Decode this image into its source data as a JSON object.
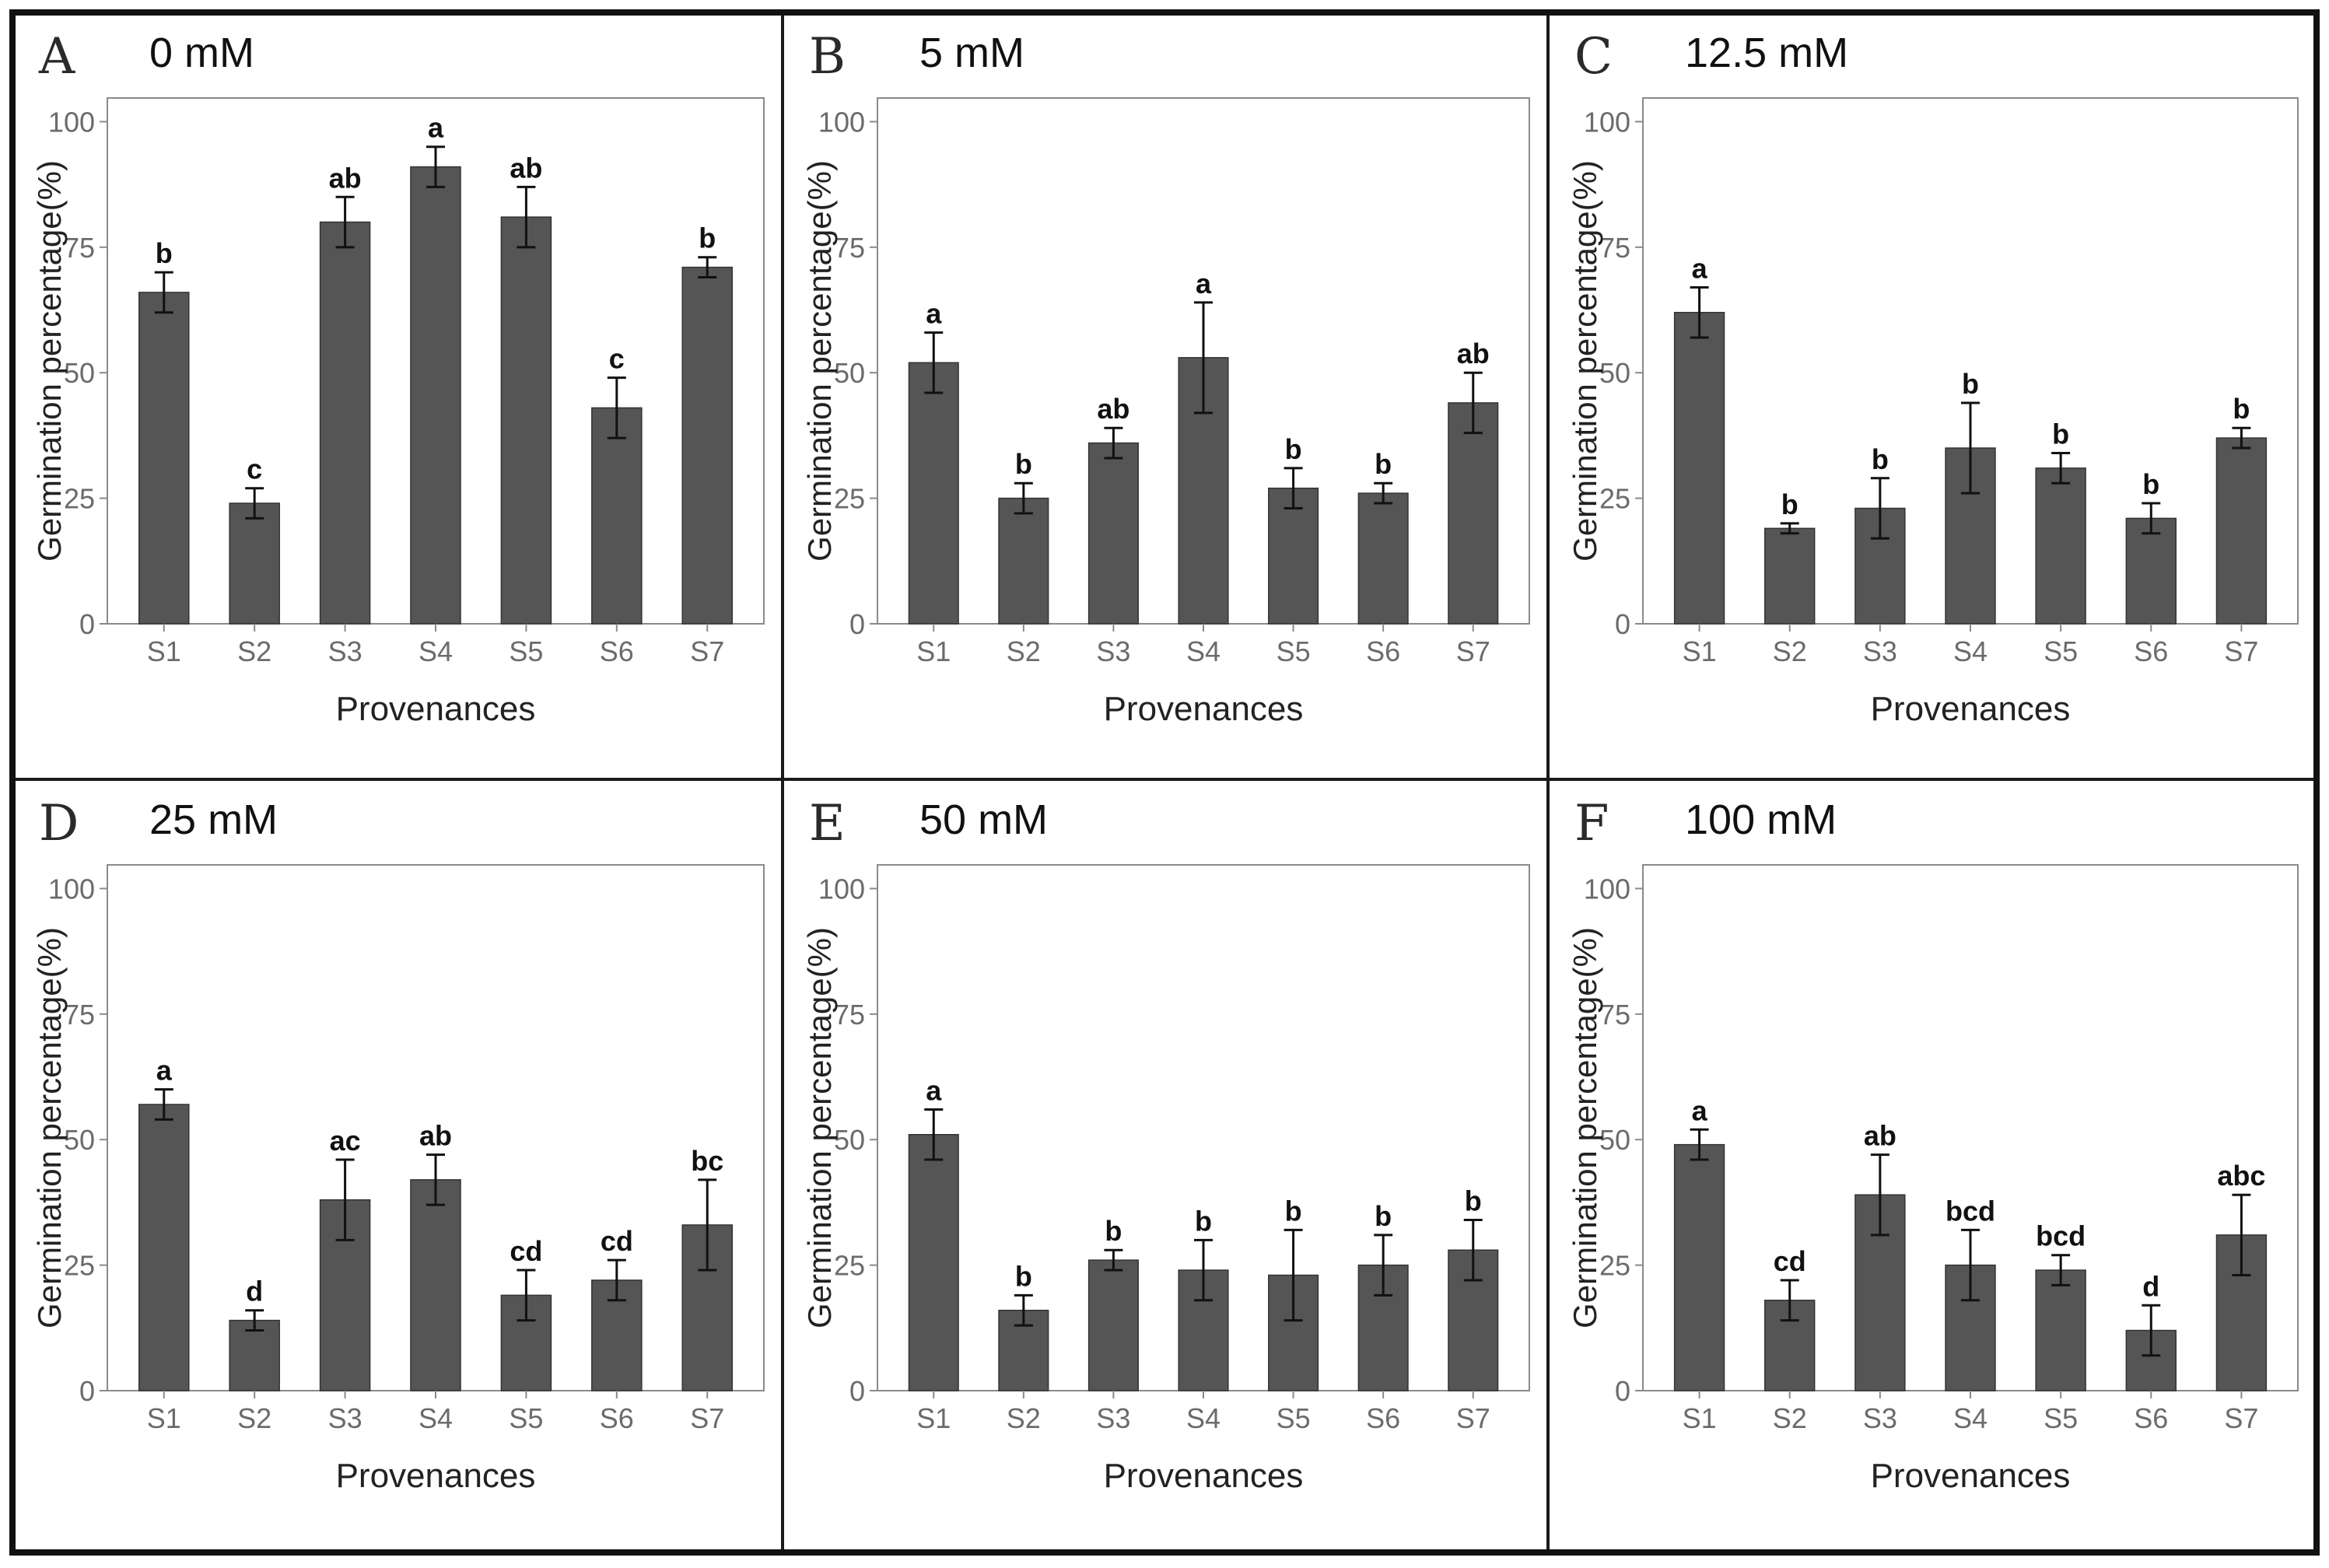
{
  "chart_data": [
    {
      "type": "bar",
      "panel": "A",
      "title": "0 mM",
      "xlabel": "Provenances",
      "ylabel": "Germination percentage(%)",
      "ylim": [
        0,
        100
      ],
      "yticks": [
        0,
        25,
        50,
        75,
        100
      ],
      "categories": [
        "S1",
        "S2",
        "S3",
        "S4",
        "S5",
        "S6",
        "S7"
      ],
      "values": [
        66,
        24,
        80,
        91,
        81,
        43,
        71
      ],
      "errors": [
        4,
        3,
        5,
        4,
        6,
        6,
        2
      ],
      "labels": [
        "b",
        "c",
        "ab",
        "a",
        "ab",
        "c",
        "b"
      ]
    },
    {
      "type": "bar",
      "panel": "B",
      "title": "5 mM",
      "xlabel": "Provenances",
      "ylabel": "Germination percentage(%)",
      "ylim": [
        0,
        100
      ],
      "yticks": [
        0,
        25,
        50,
        75,
        100
      ],
      "categories": [
        "S1",
        "S2",
        "S3",
        "S4",
        "S5",
        "S6",
        "S7"
      ],
      "values": [
        52,
        25,
        36,
        53,
        27,
        26,
        44
      ],
      "errors": [
        6,
        3,
        3,
        11,
        4,
        2,
        6
      ],
      "labels": [
        "a",
        "b",
        "ab",
        "a",
        "b",
        "b",
        "ab"
      ]
    },
    {
      "type": "bar",
      "panel": "C",
      "title": "12.5 mM",
      "xlabel": "Provenances",
      "ylabel": "Germination percentage(%)",
      "ylim": [
        0,
        100
      ],
      "yticks": [
        0,
        25,
        50,
        75,
        100
      ],
      "categories": [
        "S1",
        "S2",
        "S3",
        "S4",
        "S5",
        "S6",
        "S7"
      ],
      "values": [
        62,
        19,
        23,
        35,
        31,
        21,
        37
      ],
      "errors": [
        5,
        1,
        6,
        9,
        3,
        3,
        2
      ],
      "labels": [
        "a",
        "b",
        "b",
        "b",
        "b",
        "b",
        "b"
      ]
    },
    {
      "type": "bar",
      "panel": "D",
      "title": "25 mM",
      "xlabel": "Provenances",
      "ylabel": "Germination percentage(%)",
      "ylim": [
        0,
        100
      ],
      "yticks": [
        0,
        25,
        50,
        75,
        100
      ],
      "categories": [
        "S1",
        "S2",
        "S3",
        "S4",
        "S5",
        "S6",
        "S7"
      ],
      "values": [
        57,
        14,
        38,
        42,
        19,
        22,
        33
      ],
      "errors": [
        3,
        2,
        8,
        5,
        5,
        4,
        9
      ],
      "labels": [
        "a",
        "d",
        "ac",
        "ab",
        "cd",
        "cd",
        "bc"
      ]
    },
    {
      "type": "bar",
      "panel": "E",
      "title": "50 mM",
      "xlabel": "Provenances",
      "ylabel": "Germination percentage(%)",
      "ylim": [
        0,
        100
      ],
      "yticks": [
        0,
        25,
        50,
        75,
        100
      ],
      "categories": [
        "S1",
        "S2",
        "S3",
        "S4",
        "S5",
        "S6",
        "S7"
      ],
      "values": [
        51,
        16,
        26,
        24,
        23,
        25,
        28
      ],
      "errors": [
        5,
        3,
        2,
        6,
        9,
        6,
        6
      ],
      "labels": [
        "a",
        "b",
        "b",
        "b",
        "b",
        "b",
        "b"
      ]
    },
    {
      "type": "bar",
      "panel": "F",
      "title": "100 mM",
      "xlabel": "Provenances",
      "ylabel": "Germination percentage(%)",
      "ylim": [
        0,
        100
      ],
      "yticks": [
        0,
        25,
        50,
        75,
        100
      ],
      "categories": [
        "S1",
        "S2",
        "S3",
        "S4",
        "S5",
        "S6",
        "S7"
      ],
      "values": [
        49,
        18,
        39,
        25,
        24,
        12,
        31
      ],
      "errors": [
        3,
        4,
        8,
        7,
        3,
        5,
        8
      ],
      "labels": [
        "a",
        "cd",
        "ab",
        "bcd",
        "bcd",
        "d",
        "abc"
      ]
    }
  ],
  "colors": {
    "bar": "#555555",
    "frame": "#8a8a8a",
    "text": "#111111"
  }
}
